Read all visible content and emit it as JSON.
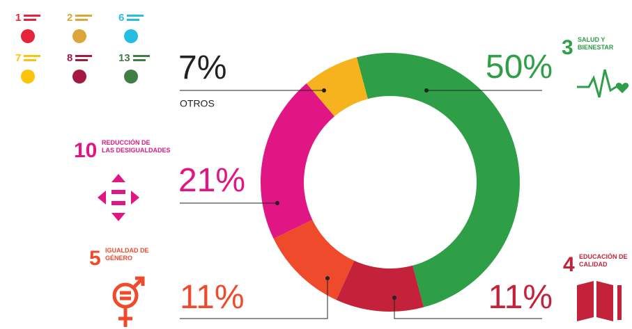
{
  "chart_data": {
    "type": "donut",
    "categories": [
      "SALUD Y BIENESTAR",
      "EDUCACIÓN DE CALIDAD",
      "IGUALDAD DE GÉNERO",
      "REDUCCIÓN DE LAS DESIGUALDADES",
      "OTROS"
    ],
    "goal_numbers": [
      3,
      4,
      5,
      10,
      null
    ],
    "values": [
      50,
      11,
      11,
      21,
      7
    ],
    "value_labels": [
      "50%",
      "11%",
      "11%",
      "21%",
      "7%"
    ],
    "colors": [
      "#2e9e47",
      "#c4213a",
      "#ef4a2c",
      "#df1683",
      "#f6b31e"
    ],
    "other_goals": [
      {
        "number": 1,
        "color": "#e5243b"
      },
      {
        "number": 2,
        "color": "#dda63a"
      },
      {
        "number": 6,
        "color": "#26bde2"
      },
      {
        "number": 7,
        "color": "#fcc30b"
      },
      {
        "number": 8,
        "color": "#a21942"
      },
      {
        "number": 13,
        "color": "#3f7e44"
      }
    ]
  }
}
